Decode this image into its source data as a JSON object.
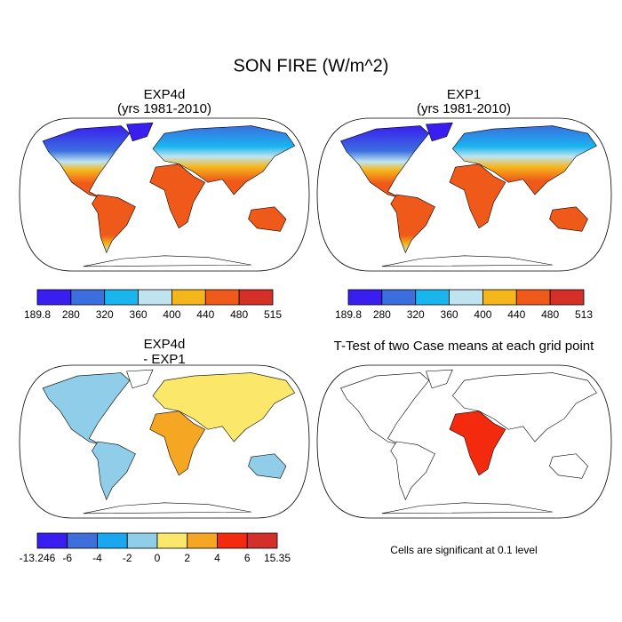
{
  "title": "SON FIRE (W/m^2)",
  "panels": [
    {
      "title": "EXP4d",
      "subtitle": "(yrs 1981-2010)",
      "colorbar": {
        "labels": [
          189.8,
          280,
          320,
          360,
          400,
          440,
          480,
          515
        ],
        "colors": [
          "#3a1ef0",
          "#3b6fe0",
          "#1ab4ef",
          "#bfe4f0",
          "#f5b61b",
          "#ef5a1a",
          "#d43027"
        ]
      }
    },
    {
      "title": "EXP1",
      "subtitle": "(yrs 1981-2010)",
      "colorbar": {
        "labels": [
          189.8,
          280,
          320,
          360,
          400,
          440,
          480,
          513
        ],
        "colors": [
          "#3a1ef0",
          "#3b6fe0",
          "#1ab4ef",
          "#bfe4f0",
          "#f5b61b",
          "#ef5a1a",
          "#d43027"
        ]
      }
    },
    {
      "title": "EXP4d",
      "subtitle": "- EXP1",
      "colorbar": {
        "labels": [
          -13.246,
          -6,
          -4,
          -2,
          0,
          2,
          4,
          6,
          15.35
        ],
        "colors": [
          "#3a1ef0",
          "#3f6fdc",
          "#1aa7ef",
          "#8fcde8",
          "#fbe86a",
          "#f5a623",
          "#f42a0e",
          "#d4302b"
        ]
      }
    },
    {
      "title": "T-Test of two Case means at each grid point",
      "note": "Cells are significant at 0.1 level"
    }
  ]
}
